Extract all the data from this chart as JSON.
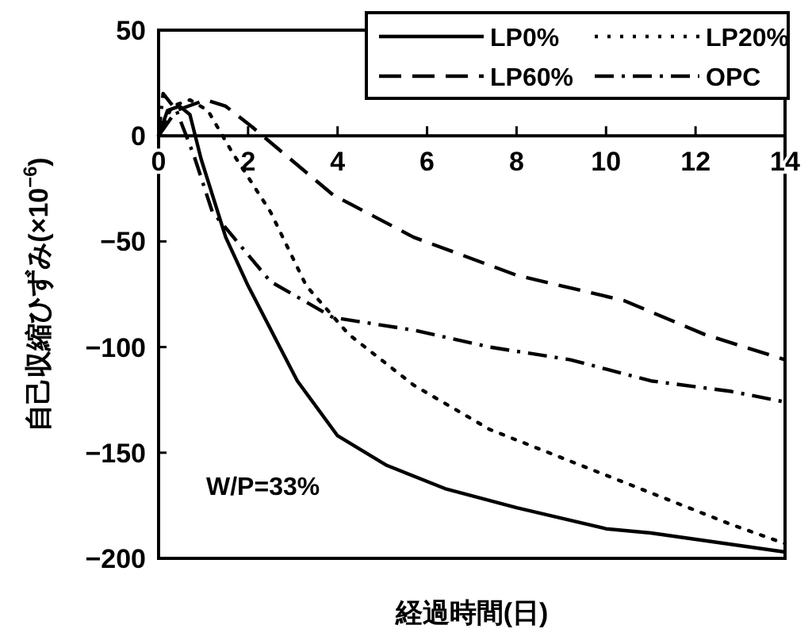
{
  "chart_data": {
    "type": "line",
    "xlabel": "経過時間(日)",
    "ylabel": "自己収縮ひずみ(×10$^{−6}$)",
    "xlim": [
      0,
      14
    ],
    "ylim": [
      -200,
      50
    ],
    "xticks": [
      0,
      2,
      4,
      6,
      8,
      10,
      12,
      14
    ],
    "yticks": [
      -200,
      -150,
      -100,
      -50,
      0,
      50
    ],
    "grid": false,
    "legend": "top right",
    "marker": "none",
    "annotations": [
      "W/P=33%"
    ],
    "series": [
      {
        "name": "LP0%",
        "color": "#000000",
        "line_style": "solid",
        "x": [
          0,
          0.2,
          0.47,
          0.7,
          0.95,
          1.5,
          2.0,
          3.1,
          4.0,
          5.1,
          6.4,
          8.0,
          10.0,
          11.0,
          14.0
        ],
        "values": [
          0,
          12,
          14,
          10,
          -11,
          -48,
          -71,
          -116,
          -142,
          -156,
          -167,
          -176,
          -186,
          -188,
          -197
        ]
      },
      {
        "name": "LP20%",
        "color": "#000000",
        "line_style": "dotted",
        "x": [
          0,
          0.3,
          0.7,
          1.1,
          1.65,
          2.5,
          3.3,
          4.25,
          5.7,
          7.4,
          9.2,
          11.0,
          12.8,
          14.0
        ],
        "values": [
          0,
          14,
          17,
          12,
          -8,
          -36,
          -71,
          -94,
          -118,
          -139,
          -154,
          -169,
          -184,
          -193
        ]
      },
      {
        "name": "LP60%",
        "color": "#000000",
        "line_style": "dashed",
        "x": [
          0,
          0.4,
          1.05,
          1.5,
          2.1,
          3.9,
          5.7,
          8.0,
          10.4,
          12.2,
          14.0
        ],
        "values": [
          0,
          12,
          17,
          14,
          4,
          -28,
          -48,
          -66,
          -78,
          -94,
          -106
        ]
      },
      {
        "name": "OPC",
        "color": "#000000",
        "line_style": "dashdot",
        "x": [
          0,
          0.1,
          0.4,
          0.8,
          1.2,
          2.5,
          3.9,
          5.7,
          7.4,
          9.2,
          11.0,
          12.8,
          14.0
        ],
        "values": [
          0,
          20,
          12,
          -10,
          -36,
          -69,
          -86,
          -92,
          -100,
          -106,
          -116,
          -121,
          -126
        ]
      }
    ]
  }
}
